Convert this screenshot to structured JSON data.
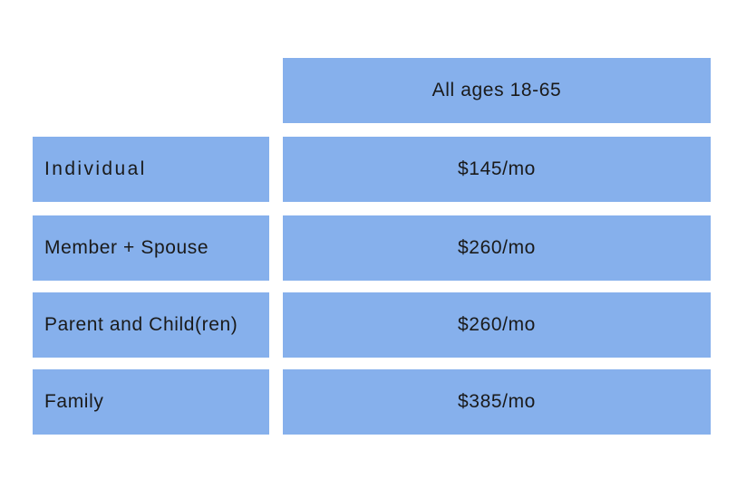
{
  "table": {
    "column_header": "All ages 18-65",
    "rows": [
      {
        "label": "Individual",
        "price": "$145/mo"
      },
      {
        "label": "Member + Spouse",
        "price": "$260/mo"
      },
      {
        "label": "Parent and Child(ren)",
        "price": "$260/mo"
      },
      {
        "label": "Family",
        "price": "$385/mo"
      }
    ]
  },
  "colors": {
    "cell_background": "#86b0ec",
    "text": "#1a1a1a",
    "page_background": "#ffffff"
  }
}
